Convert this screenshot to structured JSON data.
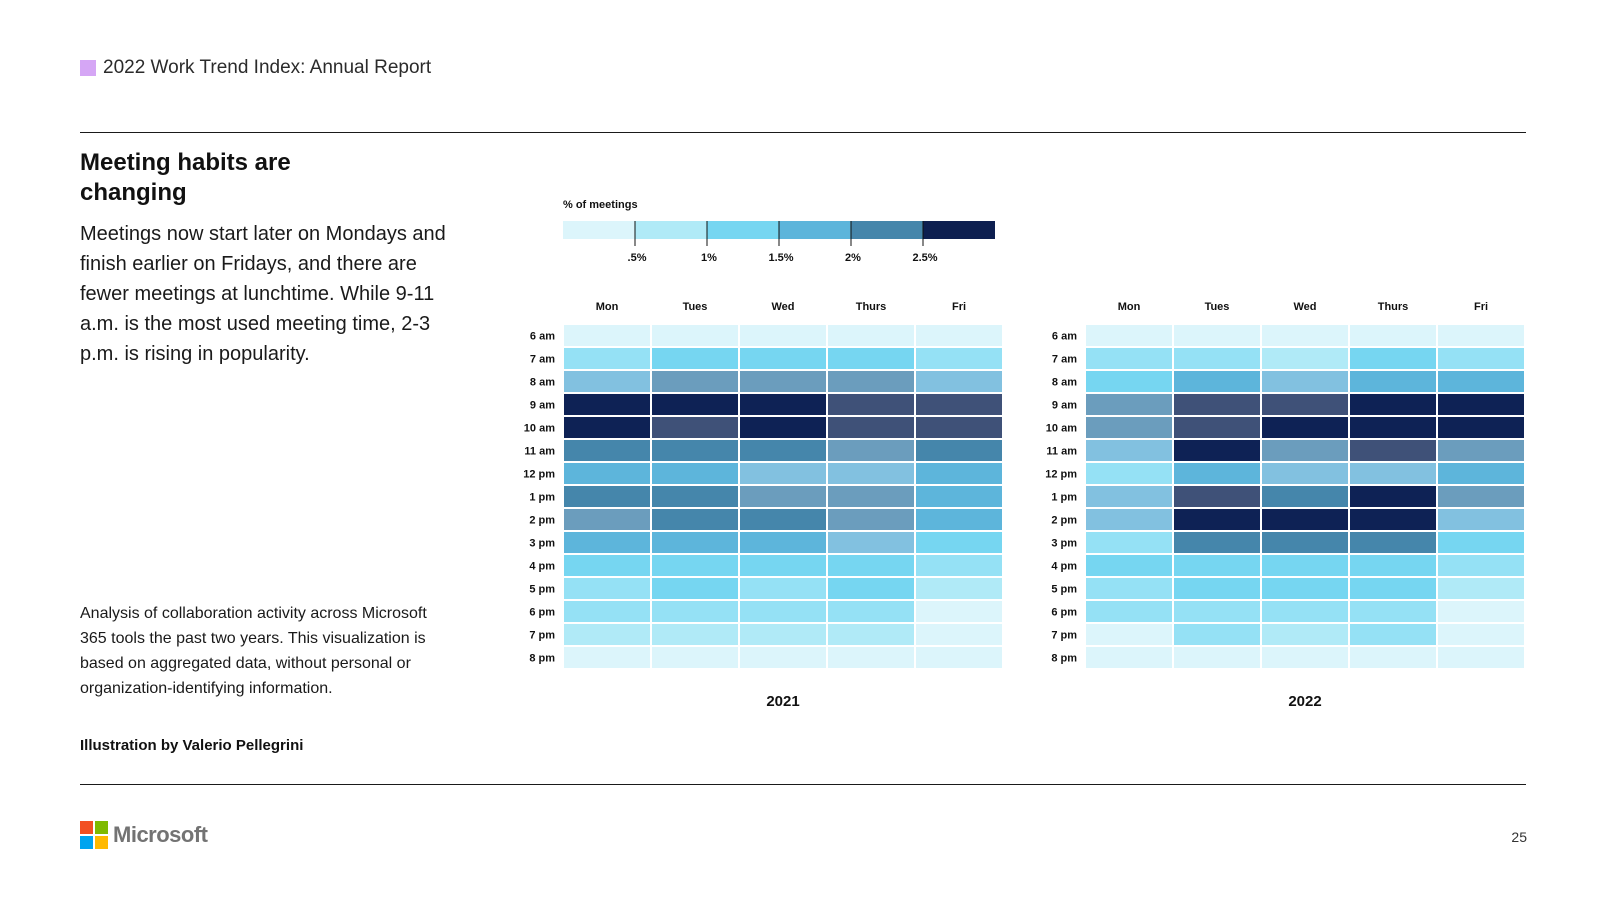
{
  "header": {
    "title": "2022 Work Trend Index: Annual Report",
    "accent_color": "#d5a6f5"
  },
  "title": "Meeting habits are changing",
  "lead": "Meetings now start later on Mondays and finish earlier on Fridays, and there are fewer meetings at lunchtime. While 9-11 a.m. is the most used meeting time, 2-3 p.m. is rising in popularity.",
  "note": "Analysis of collaboration activity across Microsoft 365 tools the past two years. This visualization is based on aggregated data, without personal or organization-identifying information.",
  "credit": "Illustration by Valerio Pellegrini",
  "footer": {
    "brand": "Microsoft",
    "page_number": "25"
  },
  "chart_data": {
    "type": "heatmap",
    "legend": {
      "title": "% of meetings",
      "ticks": [
        ".5%",
        "1%",
        "1.5%",
        "2%",
        "2.5%"
      ],
      "colors": [
        "#dcf5fb",
        "#b0eaf7",
        "#76d6f1",
        "#5db5db",
        "#4586ab",
        "#0d1f50"
      ]
    },
    "palette": [
      "#dcf5fb",
      "#b0eaf7",
      "#95e1f5",
      "#76d6f1",
      "#5db5db",
      "#82c1e0",
      "#6b9dbd",
      "#4586ab",
      "#3f5178",
      "#0e2255"
    ],
    "columns": [
      "Mon",
      "Tues",
      "Wed",
      "Thurs",
      "Fri"
    ],
    "rows": [
      "6 am",
      "7 am",
      "8 am",
      "9 am",
      "10 am",
      "11 am",
      "12 pm",
      "1 pm",
      "2 pm",
      "3 pm",
      "4 pm",
      "5 pm",
      "6 pm",
      "7 pm",
      "8 pm"
    ],
    "panels": [
      {
        "label": "2021",
        "levels": [
          [
            0,
            0,
            0,
            0,
            0
          ],
          [
            2,
            3,
            3,
            3,
            2
          ],
          [
            5,
            6,
            6,
            6,
            5
          ],
          [
            9,
            9,
            9,
            8,
            8
          ],
          [
            9,
            8,
            9,
            8,
            8
          ],
          [
            7,
            7,
            7,
            6,
            7
          ],
          [
            4,
            4,
            5,
            5,
            4
          ],
          [
            7,
            7,
            6,
            6,
            4
          ],
          [
            6,
            7,
            7,
            6,
            4
          ],
          [
            4,
            4,
            4,
            5,
            3
          ],
          [
            3,
            3,
            3,
            3,
            2
          ],
          [
            2,
            3,
            2,
            3,
            1
          ],
          [
            2,
            2,
            2,
            2,
            0
          ],
          [
            1,
            1,
            1,
            1,
            0
          ],
          [
            0,
            0,
            0,
            0,
            0
          ]
        ]
      },
      {
        "label": "2022",
        "levels": [
          [
            0,
            0,
            0,
            0,
            0
          ],
          [
            2,
            2,
            1,
            3,
            2
          ],
          [
            3,
            4,
            5,
            4,
            4
          ],
          [
            6,
            8,
            8,
            9,
            9
          ],
          [
            6,
            8,
            9,
            9,
            9
          ],
          [
            5,
            9,
            6,
            8,
            6
          ],
          [
            2,
            4,
            5,
            5,
            4
          ],
          [
            5,
            8,
            7,
            9,
            6
          ],
          [
            5,
            9,
            9,
            9,
            5
          ],
          [
            2,
            7,
            7,
            7,
            3
          ],
          [
            3,
            3,
            3,
            3,
            2
          ],
          [
            2,
            3,
            3,
            3,
            1
          ],
          [
            2,
            2,
            2,
            2,
            0
          ],
          [
            0,
            2,
            1,
            2,
            0
          ],
          [
            0,
            0,
            0,
            0,
            0
          ]
        ]
      }
    ]
  }
}
